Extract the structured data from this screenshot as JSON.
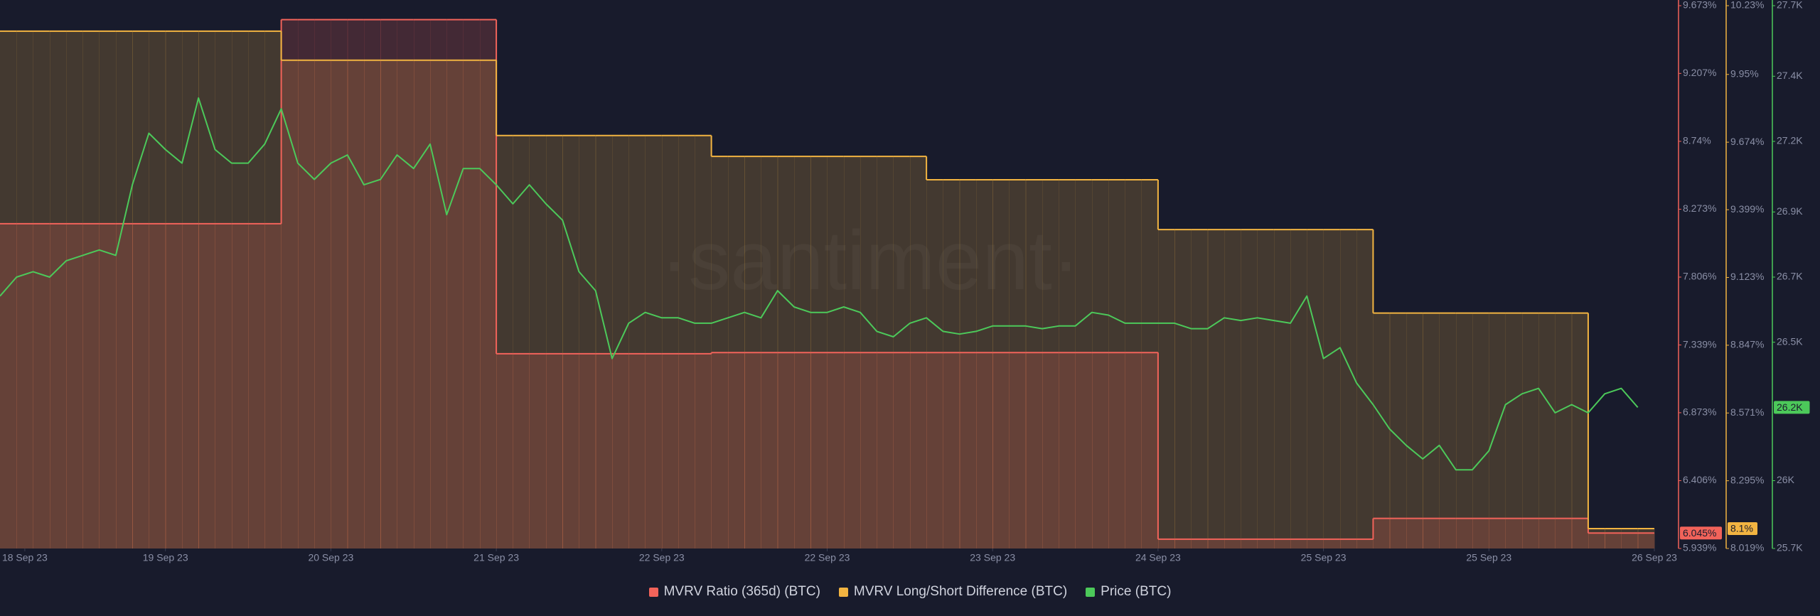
{
  "chart_data": {
    "type": "line",
    "watermark": "·santiment·",
    "x": [
      0,
      1,
      2,
      3,
      4,
      5,
      6,
      7,
      8,
      9,
      10,
      11,
      12,
      13,
      14,
      15,
      16,
      17,
      18,
      19,
      20,
      21,
      22,
      23,
      24,
      25,
      26,
      27,
      28,
      29,
      30,
      31,
      32,
      33,
      34,
      35,
      36,
      37,
      38,
      39,
      40,
      41,
      42,
      43,
      44,
      45,
      46,
      47,
      48,
      49,
      50,
      51,
      52,
      53,
      54,
      55,
      56,
      57,
      58,
      59,
      60,
      61,
      62,
      63,
      64,
      65,
      66,
      67,
      68,
      69,
      70,
      71,
      72,
      73,
      74,
      75,
      76,
      77,
      78,
      79,
      80,
      81,
      82,
      83,
      84,
      85,
      86,
      87,
      88,
      89,
      90,
      91,
      92,
      93,
      94,
      95,
      96,
      97,
      98,
      99
    ],
    "xlim": [
      0,
      100
    ],
    "xticks": [
      {
        "value": 1.5,
        "label": "18 Sep 23"
      },
      {
        "value": 10,
        "label": "19 Sep 23"
      },
      {
        "value": 20,
        "label": "20 Sep 23"
      },
      {
        "value": 30,
        "label": "21 Sep 23"
      },
      {
        "value": 40,
        "label": "22 Sep 23"
      },
      {
        "value": 50,
        "label": "22 Sep 23"
      },
      {
        "value": 60,
        "label": "23 Sep 23"
      },
      {
        "value": 70,
        "label": "24 Sep 23"
      },
      {
        "value": 80,
        "label": "25 Sep 23"
      },
      {
        "value": 90,
        "label": "25 Sep 23"
      },
      {
        "value": 100,
        "label": "26 Sep 23"
      }
    ],
    "ylim": [
      5.939,
      9.673
    ],
    "yticks": [
      {
        "value": 5.939,
        "label": "5.939%"
      },
      {
        "value": 6.406,
        "label": "6.406%"
      },
      {
        "value": 6.873,
        "label": "6.873%"
      },
      {
        "value": 7.339,
        "label": "7.339%"
      },
      {
        "value": 7.806,
        "label": "7.806%"
      },
      {
        "value": 8.273,
        "label": "8.273%"
      },
      {
        "value": 8.74,
        "label": "8.74%"
      },
      {
        "value": 9.207,
        "label": "9.207%"
      },
      {
        "value": 9.673,
        "label": "9.673%"
      }
    ],
    "y2lim": [
      8.019,
      10.23
    ],
    "y2ticks": [
      {
        "value": 8.019,
        "label": "8.019%"
      },
      {
        "value": 8.295,
        "label": "8.295%"
      },
      {
        "value": 8.571,
        "label": "8.571%"
      },
      {
        "value": 8.847,
        "label": "8.847%"
      },
      {
        "value": 9.123,
        "label": "9.123%"
      },
      {
        "value": 9.399,
        "label": "9.399%"
      },
      {
        "value": 9.674,
        "label": "9.674%"
      },
      {
        "value": 9.95,
        "label": "9.95%"
      },
      {
        "value": 10.23,
        "label": "10.23%"
      }
    ],
    "y3lim": [
      25700,
      27700
    ],
    "y3ticks": [
      {
        "value": 25700,
        "label": "25.7K"
      },
      {
        "value": 25950,
        "label": "26K"
      },
      {
        "value": 26460,
        "label": "26.5K"
      },
      {
        "value": 26700,
        "label": "26.7K"
      },
      {
        "value": 26940,
        "label": "26.9K"
      },
      {
        "value": 27200,
        "label": "27.2K"
      },
      {
        "value": 27440,
        "label": "27.4K"
      },
      {
        "value": 27700,
        "label": "27.7K"
      }
    ],
    "series": [
      {
        "name": "MVRV Ratio (365d) (BTC)",
        "color": "#f2635a",
        "axis": "y",
        "step": true,
        "values": [
          8.173,
          8.173,
          8.173,
          8.173,
          8.173,
          8.173,
          8.173,
          8.173,
          8.173,
          8.173,
          8.173,
          8.173,
          8.173,
          8.173,
          8.173,
          8.173,
          8.173,
          9.577,
          9.577,
          9.577,
          9.577,
          9.577,
          9.577,
          9.577,
          9.577,
          9.577,
          9.577,
          9.577,
          9.577,
          9.577,
          7.279,
          7.279,
          7.279,
          7.279,
          7.279,
          7.279,
          7.279,
          7.279,
          7.279,
          7.279,
          7.279,
          7.279,
          7.279,
          7.287,
          7.287,
          7.287,
          7.287,
          7.287,
          7.287,
          7.287,
          7.287,
          7.287,
          7.287,
          7.287,
          7.287,
          7.287,
          7.287,
          7.287,
          7.287,
          7.287,
          7.287,
          7.287,
          7.287,
          7.287,
          7.287,
          7.287,
          7.287,
          7.287,
          7.287,
          7.287,
          6.003,
          6.003,
          6.003,
          6.003,
          6.003,
          6.003,
          6.003,
          6.003,
          6.003,
          6.003,
          6.003,
          6.003,
          6.003,
          6.146,
          6.146,
          6.146,
          6.146,
          6.146,
          6.146,
          6.146,
          6.146,
          6.146,
          6.146,
          6.146,
          6.146,
          6.146,
          6.045,
          6.045,
          6.045,
          6.045
        ],
        "value_labels": [
          null,
          null,
          null,
          null,
          null,
          null,
          null,
          null,
          null,
          null,
          null,
          null,
          null,
          null,
          null,
          null,
          null,
          null,
          null,
          null,
          null,
          null,
          null,
          null,
          null,
          null,
          null,
          null,
          null,
          null,
          null,
          null,
          null,
          null,
          null,
          null,
          null,
          null,
          null,
          null,
          null,
          null,
          null,
          null,
          null,
          null,
          null,
          null,
          null,
          null,
          null,
          null,
          null,
          null,
          null,
          null,
          null,
          null,
          null,
          null,
          null,
          null,
          null,
          null,
          null,
          null,
          null,
          null,
          null,
          null,
          null,
          null,
          null,
          null,
          null,
          null,
          null,
          null,
          null,
          null,
          null,
          null,
          null,
          null,
          null,
          null,
          null,
          null,
          null,
          null,
          null,
          null,
          null,
          null,
          null,
          null,
          null,
          null,
          null,
          "6.045%"
        ]
      },
      {
        "name": "MVRV Long/Short Difference (BTC)",
        "color": "#f2b441",
        "axis": "y2",
        "step": true,
        "values": [
          10.126,
          10.126,
          10.126,
          10.126,
          10.126,
          10.126,
          10.126,
          10.126,
          10.126,
          10.126,
          10.126,
          10.126,
          10.126,
          10.126,
          10.126,
          10.126,
          10.126,
          10.008,
          10.008,
          10.008,
          10.008,
          10.008,
          10.008,
          10.008,
          10.008,
          10.008,
          10.008,
          10.008,
          10.008,
          10.008,
          9.701,
          9.701,
          9.701,
          9.701,
          9.701,
          9.701,
          9.701,
          9.701,
          9.701,
          9.701,
          9.701,
          9.701,
          9.701,
          9.616,
          9.616,
          9.616,
          9.616,
          9.616,
          9.616,
          9.616,
          9.616,
          9.616,
          9.616,
          9.616,
          9.616,
          9.616,
          9.521,
          9.521,
          9.521,
          9.521,
          9.521,
          9.521,
          9.521,
          9.521,
          9.521,
          9.521,
          9.521,
          9.521,
          9.521,
          9.521,
          9.318,
          9.318,
          9.318,
          9.318,
          9.318,
          9.318,
          9.318,
          9.318,
          9.318,
          9.318,
          9.318,
          9.318,
          9.318,
          8.978,
          8.978,
          8.978,
          8.978,
          8.978,
          8.978,
          8.978,
          8.978,
          8.978,
          8.978,
          8.978,
          8.978,
          8.978,
          8.1,
          8.1,
          8.1,
          8.1
        ],
        "value_labels": [
          null,
          null,
          null,
          null,
          null,
          null,
          null,
          null,
          null,
          null,
          null,
          null,
          null,
          null,
          null,
          null,
          null,
          null,
          null,
          null,
          null,
          null,
          null,
          null,
          null,
          null,
          null,
          null,
          null,
          null,
          null,
          null,
          null,
          null,
          null,
          null,
          null,
          null,
          null,
          null,
          null,
          null,
          null,
          null,
          null,
          null,
          null,
          null,
          null,
          null,
          null,
          null,
          null,
          null,
          null,
          null,
          null,
          null,
          null,
          null,
          null,
          null,
          null,
          null,
          null,
          null,
          null,
          null,
          null,
          null,
          null,
          null,
          null,
          null,
          null,
          null,
          null,
          null,
          null,
          null,
          null,
          null,
          null,
          null,
          null,
          null,
          null,
          null,
          null,
          null,
          null,
          null,
          null,
          null,
          null,
          null,
          null,
          null,
          null,
          "8.1%"
        ]
      },
      {
        "name": "Price (BTC)",
        "color": "#4cc95a",
        "axis": "y3",
        "step": false,
        "values": [
          26630,
          26700,
          26720,
          26700,
          26760,
          26780,
          26800,
          26780,
          27040,
          27230,
          27170,
          27120,
          27360,
          27170,
          27120,
          27120,
          27190,
          27320,
          27120,
          27060,
          27120,
          27150,
          27040,
          27060,
          27150,
          27100,
          27190,
          26930,
          27100,
          27100,
          27040,
          26970,
          27040,
          26970,
          26910,
          26720,
          26650,
          26400,
          26530,
          26570,
          26550,
          26550,
          26530,
          26530,
          26550,
          26570,
          26550,
          26650,
          26590,
          26570,
          26570,
          26590,
          26570,
          26500,
          26480,
          26530,
          26550,
          26500,
          26490,
          26500,
          26520,
          26520,
          26520,
          26510,
          26520,
          26520,
          26570,
          26560,
          26530,
          26530,
          26530,
          26530,
          26510,
          26510,
          26550,
          26540,
          26550,
          26540,
          26530,
          26630,
          26400,
          26440,
          26310,
          26230,
          26140,
          26080,
          26030,
          26080,
          25990,
          25990,
          26060,
          26230,
          26270,
          26290,
          26200,
          26230,
          26200,
          26270,
          26290,
          26220
        ],
        "value_labels": [
          null,
          null,
          null,
          null,
          null,
          null,
          null,
          null,
          null,
          null,
          null,
          null,
          null,
          null,
          null,
          null,
          null,
          null,
          null,
          null,
          null,
          null,
          null,
          null,
          null,
          null,
          null,
          null,
          null,
          null,
          null,
          null,
          null,
          null,
          null,
          null,
          null,
          null,
          null,
          null,
          null,
          null,
          null,
          null,
          null,
          null,
          null,
          null,
          null,
          null,
          null,
          null,
          null,
          null,
          null,
          null,
          null,
          null,
          null,
          null,
          null,
          null,
          null,
          null,
          null,
          null,
          null,
          null,
          null,
          null,
          null,
          null,
          null,
          null,
          null,
          null,
          null,
          null,
          null,
          null,
          null,
          null,
          null,
          null,
          null,
          null,
          null,
          null,
          null,
          null,
          null,
          null,
          null,
          null,
          null,
          null,
          null,
          null,
          null,
          "26.2K"
        ]
      }
    ]
  }
}
